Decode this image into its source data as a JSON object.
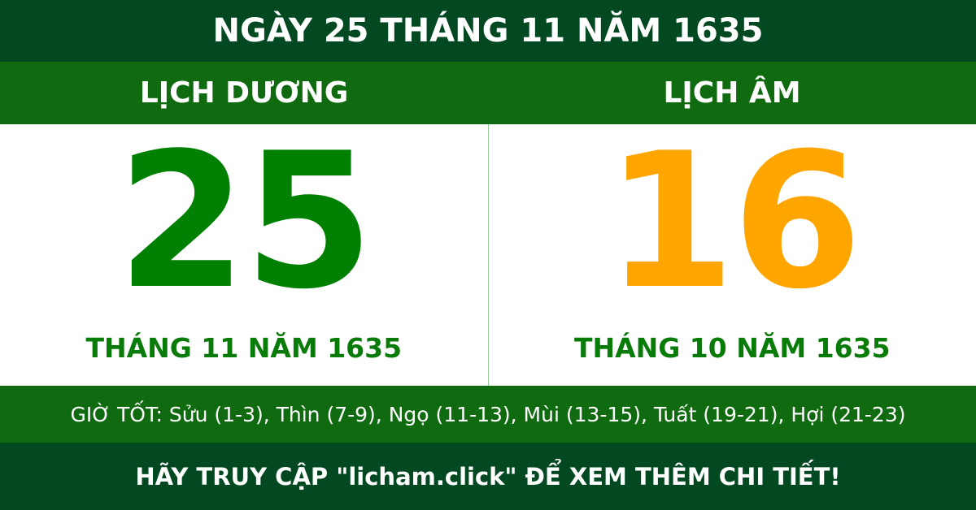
{
  "title": "NGÀY 25 THÁNG 11 NĂM 1635",
  "solar": {
    "label": "LỊCH DƯƠNG",
    "day": "25",
    "month_year": "THÁNG 11 NĂM 1635"
  },
  "lunar": {
    "label": "LỊCH ÂM",
    "day": "16",
    "month_year": "THÁNG 10 NĂM 1635"
  },
  "good_hours": "GIỜ TỐT: Sửu (1-3), Thìn (7-9), Ngọ (11-13), Mùi (13-15), Tuất (19-21), Hợi (21-23)",
  "footer": "HÃY TRUY CẬP \"licham.click\" ĐỂ XEM THÊM CHI TIẾT!",
  "colors": {
    "dark_green": "#024821",
    "green": "#106b10",
    "solar_day": "#008000",
    "lunar_day": "#ffa500"
  }
}
